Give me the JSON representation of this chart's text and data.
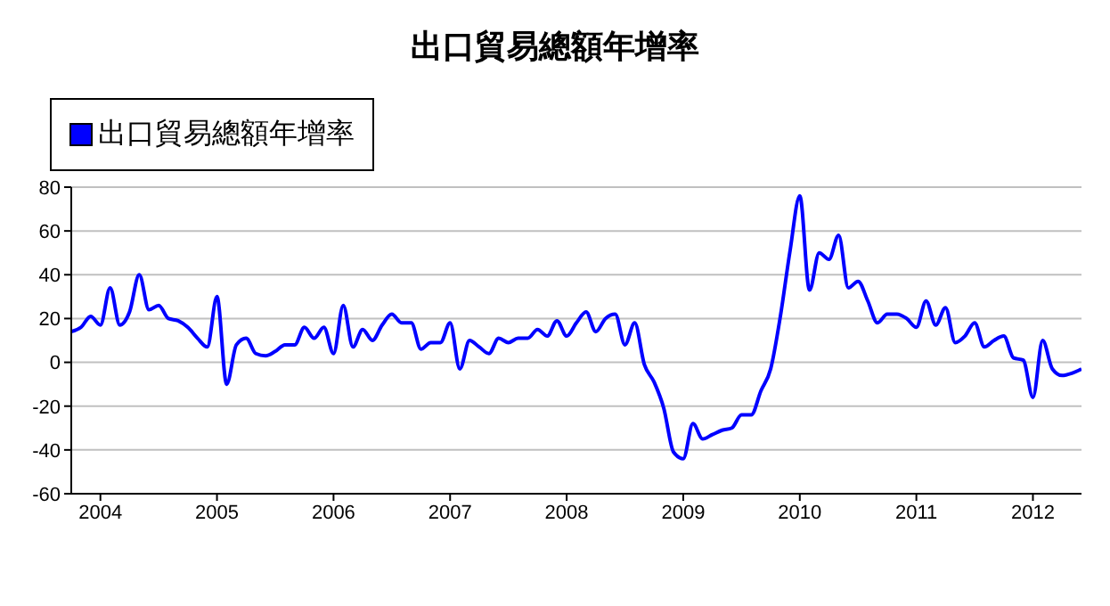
{
  "chart_data": {
    "type": "line",
    "title": "出口貿易總額年增率",
    "x": [
      "2003-10",
      "2003-11",
      "2003-12",
      "2004-01",
      "2004-02",
      "2004-03",
      "2004-04",
      "2004-05",
      "2004-06",
      "2004-07",
      "2004-08",
      "2004-09",
      "2004-10",
      "2004-11",
      "2004-12",
      "2005-01",
      "2005-02",
      "2005-03",
      "2005-04",
      "2005-05",
      "2005-06",
      "2005-07",
      "2005-08",
      "2005-09",
      "2005-10",
      "2005-11",
      "2005-12",
      "2006-01",
      "2006-02",
      "2006-03",
      "2006-04",
      "2006-05",
      "2006-06",
      "2006-07",
      "2006-08",
      "2006-09",
      "2006-10",
      "2006-11",
      "2006-12",
      "2007-01",
      "2007-02",
      "2007-03",
      "2007-04",
      "2007-05",
      "2007-06",
      "2007-07",
      "2007-08",
      "2007-09",
      "2007-10",
      "2007-11",
      "2007-12",
      "2008-01",
      "2008-02",
      "2008-03",
      "2008-04",
      "2008-05",
      "2008-06",
      "2008-07",
      "2008-08",
      "2008-09",
      "2008-10",
      "2008-11",
      "2008-12",
      "2009-01",
      "2009-02",
      "2009-03",
      "2009-04",
      "2009-05",
      "2009-06",
      "2009-07",
      "2009-08",
      "2009-09",
      "2009-10",
      "2009-11",
      "2009-12",
      "2010-01",
      "2010-02",
      "2010-03",
      "2010-04",
      "2010-05",
      "2010-06",
      "2010-07",
      "2010-08",
      "2010-09",
      "2010-10",
      "2010-11",
      "2010-12",
      "2011-01",
      "2011-02",
      "2011-03",
      "2011-04",
      "2011-05",
      "2011-06",
      "2011-07",
      "2011-08",
      "2011-09",
      "2011-10",
      "2011-11",
      "2011-12",
      "2012-01",
      "2012-02",
      "2012-03",
      "2012-04",
      "2012-05",
      "2012-06"
    ],
    "series": [
      {
        "name": "出口貿易總額年增率",
        "color": "#0000ff",
        "values": [
          14,
          16,
          21,
          17,
          34,
          17,
          23,
          40,
          24,
          26,
          20,
          19,
          16,
          11,
          7,
          30,
          -10,
          8,
          11,
          4,
          3,
          5,
          8,
          8,
          16,
          11,
          16,
          4,
          26,
          7,
          15,
          10,
          17,
          22,
          18,
          18,
          6,
          9,
          9,
          18,
          -3,
          10,
          7,
          4,
          11,
          9,
          11,
          11,
          15,
          12,
          19,
          12,
          18,
          23,
          14,
          20,
          22,
          8,
          18,
          -1,
          -9,
          -21,
          -41,
          -44,
          -28,
          -35,
          -33,
          -31,
          -30,
          -24,
          -24,
          -13,
          -3,
          21,
          51,
          76,
          33,
          50,
          47,
          58,
          34,
          37,
          28,
          18,
          22,
          22,
          20,
          16,
          28,
          17,
          25,
          9,
          12,
          18,
          7,
          10,
          12,
          2,
          1,
          -16,
          10,
          -3,
          -6,
          -5,
          -3
        ]
      }
    ],
    "xlim": [
      "2003-10",
      "2012-06"
    ],
    "xticks": [
      "2004",
      "2005",
      "2006",
      "2007",
      "2008",
      "2009",
      "2010",
      "2011",
      "2012"
    ],
    "ylim": [
      -60,
      80
    ],
    "yticks": [
      -60,
      -40,
      -20,
      0,
      20,
      40,
      60,
      80
    ],
    "grid": "y",
    "legend": "top left",
    "marker": "none",
    "line_style": "solid"
  }
}
